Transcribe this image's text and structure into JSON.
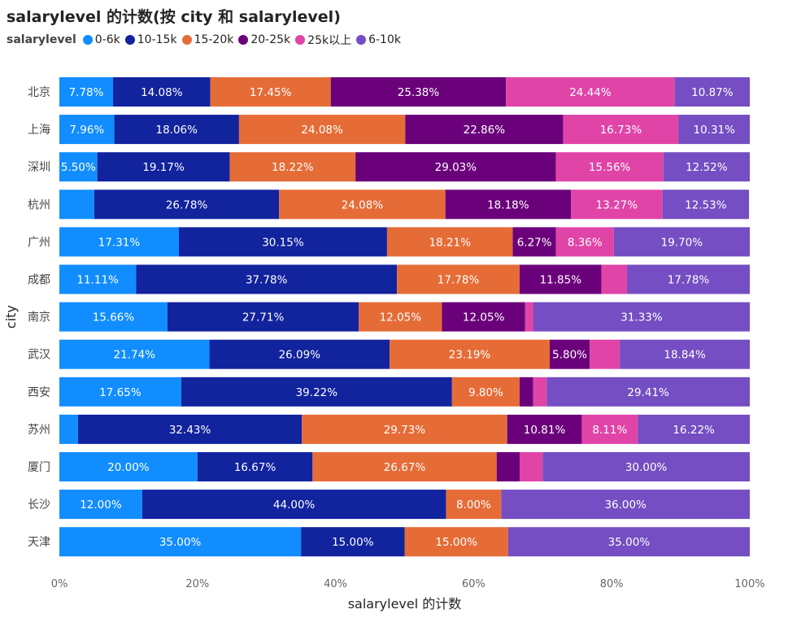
{
  "chart_data": {
    "type": "bar",
    "orientation": "horizontal",
    "stacking": "percent",
    "title": "salarylevel 的计数(按 city 和 salarylevel)",
    "xlabel": "salarylevel 的计数",
    "ylabel": "city",
    "xlim": [
      0,
      100
    ],
    "x_ticks": [
      "0%",
      "20%",
      "40%",
      "60%",
      "80%",
      "100%"
    ],
    "legend": {
      "title": "salarylevel",
      "placement": "top-left"
    },
    "grid": false,
    "categories": [
      "北京",
      "上海",
      "深圳",
      "杭州",
      "广州",
      "成都",
      "南京",
      "武汉",
      "西安",
      "苏州",
      "厦门",
      "长沙",
      "天津"
    ],
    "series": [
      {
        "name": "0-6k",
        "color": "#118DFF",
        "values": [
          7.78,
          7.96,
          5.5,
          5.05,
          17.31,
          11.11,
          15.66,
          21.74,
          17.65,
          2.7,
          20.0,
          12.0,
          35.0
        ]
      },
      {
        "name": "10-15k",
        "color": "#12239E",
        "values": [
          14.08,
          18.06,
          19.17,
          26.78,
          30.15,
          37.78,
          27.71,
          26.09,
          39.22,
          32.43,
          16.67,
          44.0,
          15.0
        ]
      },
      {
        "name": "15-20k",
        "color": "#E66C37",
        "values": [
          17.45,
          24.08,
          18.22,
          24.08,
          18.21,
          17.78,
          12.05,
          23.19,
          9.8,
          29.73,
          26.67,
          8.0,
          15.0
        ]
      },
      {
        "name": "20-25k",
        "color": "#6B007B",
        "values": [
          25.38,
          22.86,
          29.03,
          18.18,
          6.27,
          11.85,
          12.05,
          5.8,
          1.96,
          10.81,
          3.33,
          0,
          0
        ]
      },
      {
        "name": "25k以上",
        "color": "#E044A7",
        "values": [
          24.44,
          16.73,
          15.56,
          13.27,
          8.36,
          3.7,
          1.2,
          4.35,
          1.96,
          8.11,
          3.33,
          0,
          0
        ]
      },
      {
        "name": "6-10k",
        "color": "#744EC2",
        "values": [
          10.87,
          10.31,
          12.52,
          12.53,
          19.7,
          17.78,
          31.33,
          18.84,
          29.41,
          16.22,
          30.0,
          36.0,
          35.0
        ]
      }
    ],
    "data_labels": [
      [
        "7.78%",
        "14.08%",
        "17.45%",
        "25.38%",
        "24.44%",
        "10.87%"
      ],
      [
        "7.96%",
        "18.06%",
        "24.08%",
        "22.86%",
        "16.73%",
        "10.31%"
      ],
      [
        "5.50%",
        "19.17%",
        "18.22%",
        "29.03%",
        "15.56%",
        "12.52%"
      ],
      [
        "",
        "26.78%",
        "24.08%",
        "18.18%",
        "13.27%",
        "12.53%"
      ],
      [
        "17.31%",
        "30.15%",
        "18.21%",
        "6.27%",
        "8.36%",
        "19.70%"
      ],
      [
        "11.11%",
        "37.78%",
        "17.78%",
        "11.85%",
        "",
        "17.78%"
      ],
      [
        "15.66%",
        "27.71%",
        "12.05%",
        "12.05%",
        "",
        "31.33%"
      ],
      [
        "21.74%",
        "26.09%",
        "23.19%",
        "5.80%",
        "",
        "18.84%"
      ],
      [
        "17.65%",
        "39.22%",
        "9.80%",
        "",
        "",
        "29.41%"
      ],
      [
        "",
        "32.43%",
        "29.73%",
        "10.81%",
        "8.11%",
        "16.22%"
      ],
      [
        "20.00%",
        "16.67%",
        "26.67%",
        "",
        "",
        "30.00%"
      ],
      [
        "12.00%",
        "44.00%",
        "8.00%",
        "",
        "",
        "36.00%"
      ],
      [
        "35.00%",
        "15.00%",
        "15.00%",
        "",
        "",
        "35.00%"
      ]
    ]
  }
}
